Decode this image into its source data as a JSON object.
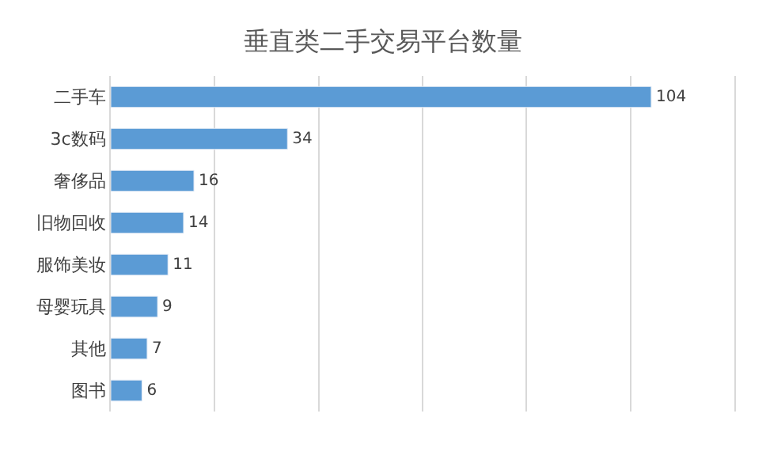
{
  "chart_data": {
    "type": "bar",
    "orientation": "horizontal",
    "title": "垂直类二手交易平台数量",
    "categories": [
      "二手车",
      "3c数码",
      "奢侈品",
      "旧物回收",
      "服饰美妆",
      "母婴玩具",
      "其他",
      "图书"
    ],
    "values": [
      104,
      34,
      16,
      14,
      11,
      9,
      7,
      6
    ],
    "color": "#5b9bd5",
    "xlim": [
      0,
      120
    ],
    "xticks": [
      {
        "value": 0,
        "label": null
      },
      {
        "value": 20,
        "label": null
      },
      {
        "value": 40,
        "label": null
      },
      {
        "value": 60,
        "label": null
      },
      {
        "value": 80,
        "label": null
      },
      {
        "value": 100,
        "label": null
      }
    ],
    "grid": "x",
    "tick_labels": "y",
    "data_labels": true,
    "legend": false
  }
}
